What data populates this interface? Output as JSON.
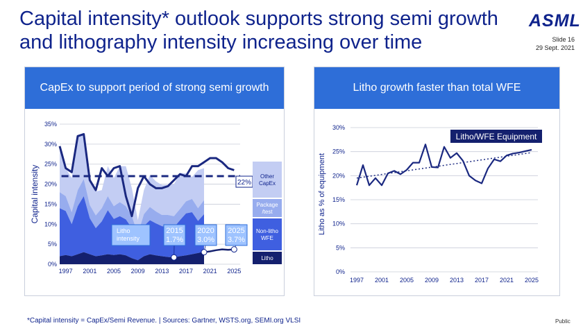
{
  "header": {
    "title": "Capital intensity* outlook supports strong semi growth\nand lithography intensity increasing over time",
    "logo": "ASML",
    "slide": "Slide 16",
    "date": "29 Sept. 2021"
  },
  "colors": {
    "brand": "#0f238c",
    "header_bar": "#2e6ed8",
    "other_capex": "#c3cdf3",
    "package_test": "#97acee",
    "non_litho_wfe": "#3f5fe0",
    "litho": "#14206e",
    "ci_line": "#1a2880",
    "callout_fill": "#9ec3ff"
  },
  "left_panel": {
    "header": "CapEx to support period of strong semi growth"
  },
  "right_panel": {
    "header": "Litho growth faster than total WFE"
  },
  "footer": {
    "note": "*Capital intensity = CapEx/Semi Revenue.  |  Sources: Gartner, WSTS.org, SEMI.org VLSI",
    "classification": "Public"
  },
  "chart_data": [
    {
      "type": "area",
      "ylabel": "Capital intensity",
      "xlabel": "",
      "ylim": [
        0,
        35
      ],
      "yticks": [
        "0%",
        "5%",
        "10%",
        "15%",
        "20%",
        "25%",
        "30%",
        "35%"
      ],
      "xticks": [
        "1997",
        "2001",
        "2005",
        "2009",
        "2013",
        "2017",
        "2021",
        "2025"
      ],
      "grid": true,
      "x": [
        1996,
        1997,
        1998,
        1999,
        2000,
        2001,
        2002,
        2003,
        2004,
        2005,
        2006,
        2007,
        2008,
        2009,
        2010,
        2011,
        2012,
        2013,
        2014,
        2015,
        2016,
        2017,
        2018,
        2019,
        2020
      ],
      "series": [
        {
          "name": "Litho",
          "values": [
            2.0,
            2.3,
            2.0,
            2.5,
            3.0,
            2.5,
            2.0,
            2.2,
            2.5,
            2.3,
            2.5,
            2.2,
            1.5,
            1.0,
            2.0,
            2.5,
            2.2,
            2.0,
            1.8,
            1.7,
            2.0,
            2.2,
            2.5,
            2.8,
            3.0
          ]
        },
        {
          "name": "Non-litho WFE",
          "values": [
            12.0,
            11.0,
            8.0,
            12.0,
            14.0,
            9.0,
            7.0,
            8.5,
            11.0,
            9.0,
            9.5,
            9.0,
            7.5,
            4.5,
            7.5,
            8.5,
            8.0,
            7.5,
            7.5,
            7.5,
            9.0,
            10.5,
            10.5,
            8.0,
            9.5
          ]
        },
        {
          "name": "Package /test",
          "values": [
            4.0,
            3.7,
            3.0,
            4.0,
            4.3,
            3.3,
            3.2,
            3.3,
            3.5,
            3.2,
            3.5,
            3.3,
            3.0,
            2.0,
            3.0,
            3.3,
            3.0,
            2.8,
            3.0,
            2.8,
            2.8,
            3.0,
            3.3,
            3.2,
            3.5
          ]
        },
        {
          "name": "Other CapEx",
          "values": [
            11.5,
            7.0,
            8.5,
            13.5,
            11.5,
            6.5,
            6.0,
            4.5,
            7.5,
            7.0,
            9.0,
            10.0,
            7.0,
            3.5,
            6.0,
            8.0,
            7.5,
            7.5,
            7.5,
            8.0,
            9.0,
            7.0,
            5.5,
            9.5,
            8.0
          ]
        }
      ],
      "capital_intensity_line": {
        "x": [
          1996,
          1997,
          1998,
          1999,
          2000,
          2001,
          2002,
          2003,
          2004,
          2005,
          2006,
          2007,
          2008,
          2009,
          2010,
          2011,
          2012,
          2013,
          2014,
          2015,
          2016,
          2017,
          2018,
          2019,
          2020,
          2021,
          2022,
          2023,
          2024,
          2025
        ],
        "values": [
          29.5,
          24,
          23,
          32,
          32.5,
          21,
          18.5,
          24,
          22,
          24,
          24.5,
          17,
          12,
          19,
          22,
          20,
          19,
          19,
          19.5,
          21,
          22.5,
          22,
          24.5,
          24.5,
          25.5,
          26.5,
          26.5,
          25.5,
          24,
          23.5
        ]
      },
      "litho_projection_line": {
        "x": [
          2017,
          2018,
          2019,
          2020,
          2021,
          2022,
          2023,
          2024,
          2025
        ],
        "values": [
          1.7,
          2.0,
          2.5,
          3.0,
          3.2,
          3.5,
          3.7,
          3.6,
          3.7
        ]
      },
      "average_line": {
        "value": 22,
        "label": "22%"
      },
      "callouts": [
        {
          "label": "Litho\nintensity"
        },
        {
          "year": "2015",
          "value": "1.7%",
          "x": 2015,
          "y": 1.7
        },
        {
          "year": "2020",
          "value": "3.0%",
          "x": 2020,
          "y": 3.0
        },
        {
          "year": "2025",
          "value": "3.7%",
          "x": 2025,
          "y": 3.7
        }
      ],
      "legend": [
        "Other\nCapEx",
        "Package\n/test",
        "Non-litho\nWFE",
        "Litho"
      ]
    },
    {
      "type": "line",
      "ylabel": "Litho as % of  equipment",
      "xlabel": "",
      "ylim": [
        0,
        30
      ],
      "yticks": [
        "0%",
        "5%",
        "10%",
        "15%",
        "20%",
        "25%",
        "30%"
      ],
      "xticks": [
        "1997",
        "2001",
        "2005",
        "2009",
        "2013",
        "2017",
        "2021",
        "2025"
      ],
      "grid": true,
      "series": [
        {
          "name": "Litho/WFE Equipment",
          "x": [
            1997,
            1998,
            1999,
            2000,
            2001,
            2002,
            2003,
            2004,
            2005,
            2006,
            2007,
            2008,
            2009,
            2010,
            2011,
            2012,
            2013,
            2014,
            2015,
            2016,
            2017,
            2018,
            2019,
            2020,
            2021,
            2022,
            2023,
            2024,
            2025
          ],
          "values": [
            18,
            22.2,
            18,
            19.5,
            18,
            20.5,
            21,
            20.3,
            21.2,
            22.7,
            22.7,
            26.5,
            21.8,
            21.7,
            26,
            23.7,
            24.7,
            23.1,
            20,
            19,
            18.4,
            21.5,
            23.4,
            23,
            24.2,
            24.6,
            24.8,
            25.1,
            25.4
          ]
        }
      ],
      "trendline": {
        "from": [
          1997,
          19.5
        ],
        "to": [
          2025,
          24.8
        ]
      },
      "annotation": "Litho/WFE Equipment"
    }
  ]
}
